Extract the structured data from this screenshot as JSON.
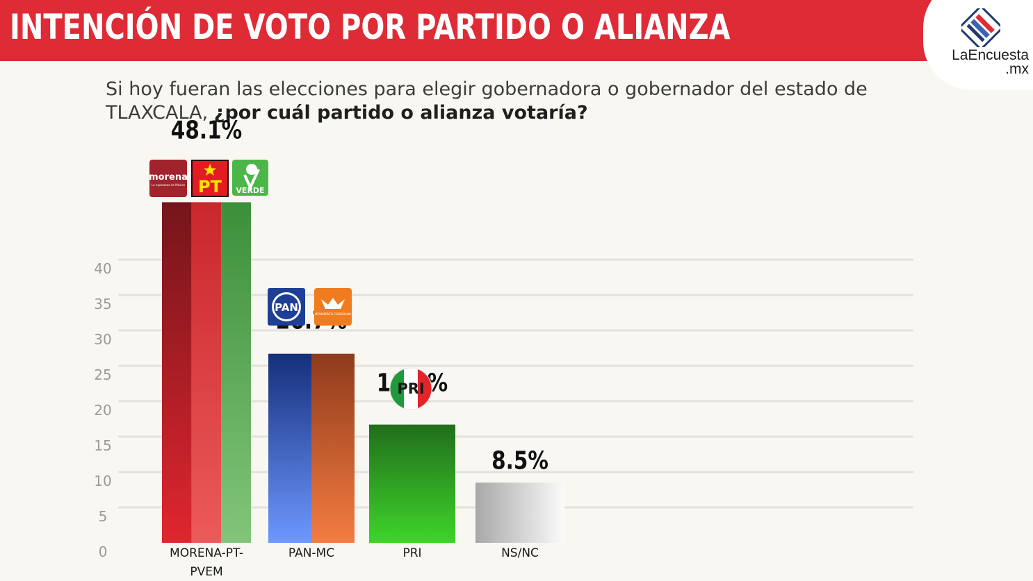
{
  "header": {
    "title": "INTENCIÓN DE VOTO POR PARTIDO O ALIANZA"
  },
  "logo": {
    "line1": "LaEncuesta",
    "line2": ".mx"
  },
  "question": {
    "normal": "Si hoy fueran las elecciones para elegir gobernadora o gobernador del estado de TLAXCALA, ",
    "bold": "¿por cuál partido o alianza votaría?"
  },
  "party_logos": {
    "morena": {
      "name": "morena",
      "tagline": "La esperanza de México",
      "bg": "#a1232b"
    },
    "pt": {
      "name": "PT",
      "bg": "#e31b23",
      "fg": "#ffe600"
    },
    "verde": {
      "name": "VERDE",
      "bg": "#4cb748"
    },
    "pan": {
      "name": "PAN",
      "bg": "#1d3f95"
    },
    "mc": {
      "name": "MOVIMIENTO CIUDADANO",
      "bg": "#f07c1f"
    },
    "pri": {
      "name": "PRI"
    }
  },
  "chart_data": {
    "type": "bar",
    "title": "",
    "xlabel": "",
    "ylabel": "",
    "ylim": [
      0,
      50
    ],
    "yticks": [
      0,
      5,
      10,
      15,
      20,
      25,
      30,
      35,
      40
    ],
    "grid": true,
    "categories": [
      "MORENA-PT-PVEM",
      "PAN-MC",
      "PRI",
      "NS/NC"
    ],
    "category_lines": [
      [
        "MORENA-PT-",
        "PVEM"
      ],
      [
        "PAN-MC"
      ],
      [
        "PRI"
      ],
      [
        "NS/NC"
      ]
    ],
    "values": [
      48.1,
      26.7,
      16.7,
      8.5
    ],
    "value_labels": [
      "48.1%",
      "26.7%",
      "16.7%",
      "8.5%"
    ],
    "bar_colors": [
      [
        "#e0262f",
        "#e75456",
        "#6cb85e"
      ],
      [
        "#2b55b8",
        "#e8643a"
      ],
      [
        "#38b324"
      ],
      [
        "#b8b8b8"
      ]
    ]
  }
}
